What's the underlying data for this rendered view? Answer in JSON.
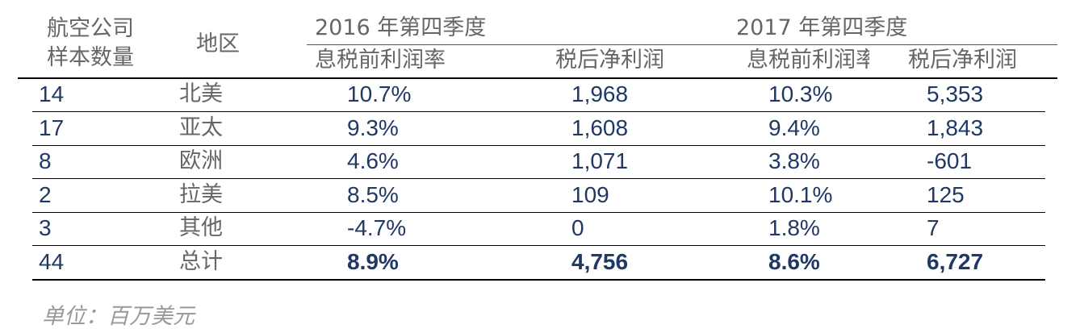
{
  "header": {
    "sample_count": [
      "航空公司",
      "样本数量"
    ],
    "region": "地区",
    "groups": [
      "2016 年第四季度",
      "2017 年第四季度"
    ],
    "columns": [
      "息税前利润率",
      "税后净利润",
      "息税前利润率",
      "税后净利润"
    ]
  },
  "table": {
    "rows": [
      [
        "14",
        "北美",
        "10.7%",
        "1,968",
        "10.3%",
        "5,353"
      ],
      [
        "17",
        "亚太",
        "9.3%",
        "1,608",
        "9.4%",
        "1,843"
      ],
      [
        "8",
        "欧洲",
        "4.6%",
        "1,071",
        "3.8%",
        "-601"
      ],
      [
        "2",
        "拉美",
        "8.5%",
        "109",
        "10.1%",
        "125"
      ],
      [
        "3",
        "其他",
        "-4.7%",
        "0",
        "1.8%",
        "7"
      ],
      [
        "44",
        "总计",
        "8.9%",
        "4,756",
        "8.6%",
        "6,727"
      ]
    ]
  },
  "footnote": "单位：百万美元"
}
